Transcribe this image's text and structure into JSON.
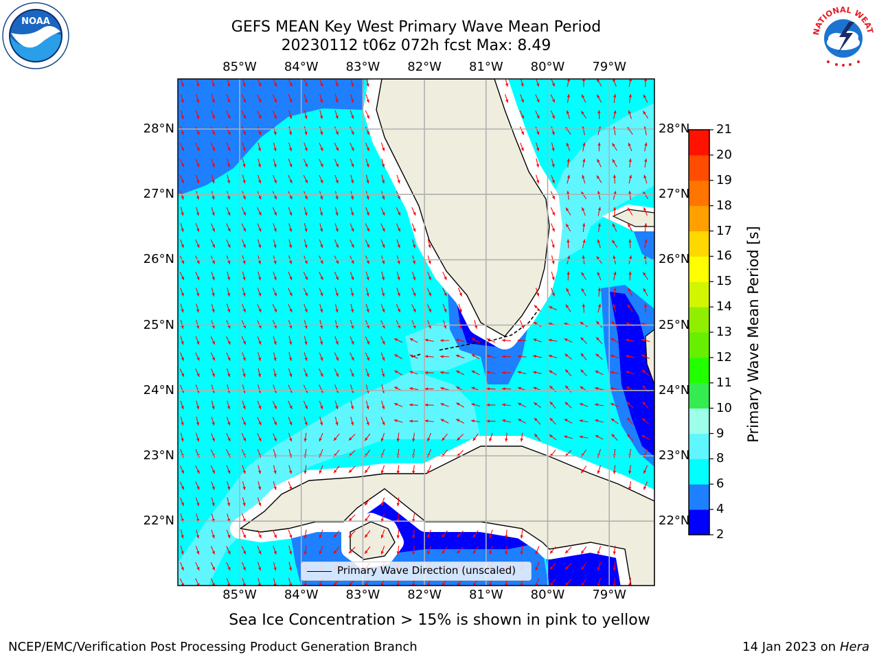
{
  "title_line1": "GEFS MEAN Key West Primary Wave Mean Period",
  "title_line2": "20230112 t06z 072h fcst   Max: 8.49",
  "lon_ticks": [
    "85°W",
    "84°W",
    "83°W",
    "82°W",
    "81°W",
    "80°W",
    "79°W"
  ],
  "lat_ticks": [
    "28°N",
    "27°N",
    "26°N",
    "25°N",
    "24°N",
    "23°N",
    "22°N"
  ],
  "colorbar": {
    "title": "Primary Wave Mean Period [s]",
    "levels": [
      "2",
      "4",
      "6",
      "8",
      "9",
      "10",
      "11",
      "12",
      "13",
      "14",
      "15",
      "16",
      "17",
      "18",
      "19",
      "20",
      "21"
    ],
    "colors": [
      "#0000ff",
      "#1e7fff",
      "#00ffff",
      "#5ff6ff",
      "#9dfeea",
      "#34ec50",
      "#22ff00",
      "#66ef00",
      "#90ee00",
      "#d2f500",
      "#ffff00",
      "#ffd800",
      "#ffa000",
      "#ff7500",
      "#ff4c00",
      "#ff1300"
    ]
  },
  "legend_label": "Primary Wave Direction (unscaled)",
  "footnote": "Sea Ice Concentration > 15% is shown in pink to yellow",
  "credit_left": "NCEP/EMC/Verification Post Processing Product Generation Branch",
  "credit_date": "14 Jan 2023 on",
  "credit_machine": "Hera",
  "logo_left_text": "NOAA",
  "logo_right_text": "NATIONAL WEATHER SERVICE",
  "colors": {
    "land": "#efedde",
    "gridline": "#b0b0b0",
    "arrow": "#ff0000"
  }
}
